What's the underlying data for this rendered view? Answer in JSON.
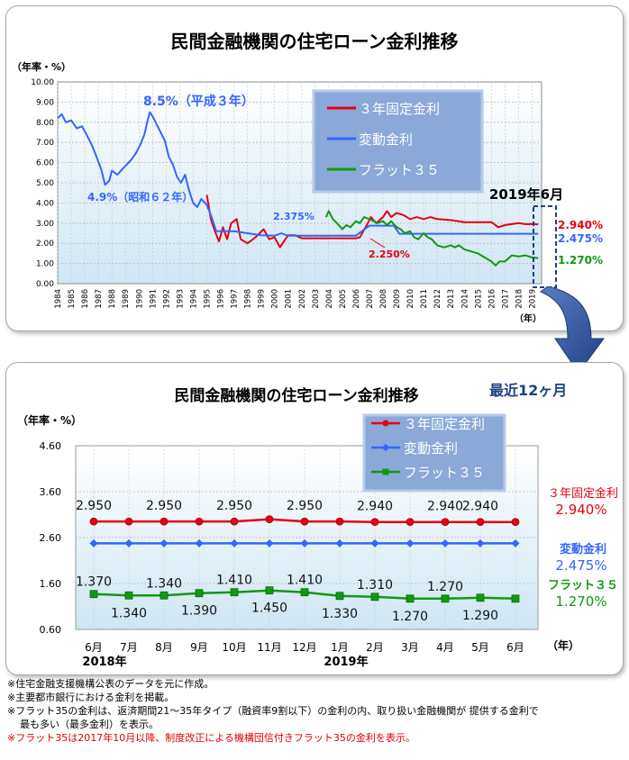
{
  "colors": {
    "fixed3": "#e60012",
    "variable": "#3366ff",
    "flat35": "#119911"
  },
  "chart_data": [
    {
      "type": "line",
      "title": "民間金融機関の住宅ローン金利推移",
      "ylabel": "（年率・%）",
      "xlabel": "（年）",
      "ylim": [
        0,
        10
      ],
      "xlim": [
        1984,
        2019.7
      ],
      "yticks": [
        "0.00",
        "1.00",
        "2.00",
        "3.00",
        "4.00",
        "5.00",
        "6.00",
        "7.00",
        "8.00",
        "9.00",
        "10.00"
      ],
      "xticks": [
        "1984",
        "1985",
        "1986",
        "1987",
        "1988",
        "1989",
        "1990",
        "1991",
        "1992",
        "1993",
        "1994",
        "1995",
        "1996",
        "1997",
        "1998",
        "1999",
        "2000",
        "2001",
        "2002",
        "2003",
        "2004",
        "2005",
        "2006",
        "2007",
        "2008",
        "2009",
        "2010",
        "2011",
        "2012",
        "2013",
        "2014",
        "2015",
        "2016",
        "2017",
        "2018",
        "2019"
      ],
      "grid": true,
      "legend": "top-right",
      "series": [
        {
          "name": "３年固定金利",
          "color_key": "fixed3",
          "points": [
            [
              1995.0,
              4.4
            ],
            [
              1995.3,
              3.2
            ],
            [
              1995.6,
              2.6
            ],
            [
              1995.9,
              2.1
            ],
            [
              1996.2,
              2.8
            ],
            [
              1996.5,
              2.2
            ],
            [
              1996.8,
              3.0
            ],
            [
              1997.2,
              3.2
            ],
            [
              1997.5,
              2.2
            ],
            [
              1998.0,
              2.0
            ],
            [
              1998.6,
              2.3
            ],
            [
              1999.2,
              2.7
            ],
            [
              1999.6,
              2.2
            ],
            [
              2000.0,
              2.3
            ],
            [
              2000.4,
              1.8
            ],
            [
              2000.8,
              2.2
            ],
            [
              2001.0,
              2.4
            ],
            [
              2001.5,
              2.4
            ],
            [
              2002.0,
              2.25
            ],
            [
              2003.0,
              2.25
            ],
            [
              2004.0,
              2.25
            ],
            [
              2005.0,
              2.25
            ],
            [
              2006.0,
              2.25
            ],
            [
              2006.3,
              2.3
            ],
            [
              2006.8,
              2.9
            ],
            [
              2007.1,
              3.3
            ],
            [
              2007.5,
              3.0
            ],
            [
              2008.0,
              3.3
            ],
            [
              2008.3,
              3.6
            ],
            [
              2008.6,
              3.3
            ],
            [
              2009.0,
              3.5
            ],
            [
              2009.5,
              3.4
            ],
            [
              2010.0,
              3.2
            ],
            [
              2010.5,
              3.3
            ],
            [
              2011.0,
              3.2
            ],
            [
              2011.5,
              3.3
            ],
            [
              2012.0,
              3.2
            ],
            [
              2013.0,
              3.15
            ],
            [
              2014.0,
              3.05
            ],
            [
              2015.0,
              3.05
            ],
            [
              2016.0,
              3.05
            ],
            [
              2016.5,
              2.8
            ],
            [
              2017.0,
              2.9
            ],
            [
              2017.5,
              2.95
            ],
            [
              2018.0,
              3.0
            ],
            [
              2018.5,
              2.95
            ],
            [
              2019.0,
              2.95
            ],
            [
              2019.45,
              2.94
            ]
          ]
        },
        {
          "name": "変動金利",
          "color_key": "variable",
          "points": [
            [
              1984.0,
              8.2
            ],
            [
              1984.3,
              8.4
            ],
            [
              1984.6,
              8.0
            ],
            [
              1985.0,
              8.1
            ],
            [
              1985.4,
              7.7
            ],
            [
              1985.8,
              7.8
            ],
            [
              1986.2,
              7.3
            ],
            [
              1986.5,
              6.9
            ],
            [
              1986.8,
              6.4
            ],
            [
              1987.2,
              5.7
            ],
            [
              1987.5,
              4.9
            ],
            [
              1987.8,
              5.1
            ],
            [
              1988.0,
              5.6
            ],
            [
              1988.4,
              5.4
            ],
            [
              1988.8,
              5.7
            ],
            [
              1989.1,
              5.9
            ],
            [
              1989.5,
              6.2
            ],
            [
              1989.8,
              6.5
            ],
            [
              1990.1,
              6.9
            ],
            [
              1990.4,
              7.4
            ],
            [
              1990.6,
              8.0
            ],
            [
              1990.8,
              8.5
            ],
            [
              1991.0,
              8.3
            ],
            [
              1991.3,
              7.9
            ],
            [
              1991.6,
              7.5
            ],
            [
              1991.9,
              7.1
            ],
            [
              1992.2,
              6.3
            ],
            [
              1992.5,
              5.9
            ],
            [
              1992.8,
              5.3
            ],
            [
              1993.1,
              5.0
            ],
            [
              1993.4,
              5.4
            ],
            [
              1993.7,
              4.6
            ],
            [
              1994.0,
              4.0
            ],
            [
              1994.3,
              3.8
            ],
            [
              1994.6,
              4.2
            ],
            [
              1995.0,
              3.9
            ],
            [
              1995.3,
              3.4
            ],
            [
              1995.7,
              2.6
            ],
            [
              1996.0,
              2.6
            ],
            [
              1997.0,
              2.6
            ],
            [
              1998.0,
              2.5
            ],
            [
              1999.0,
              2.4
            ],
            [
              2000.0,
              2.375
            ],
            [
              2000.5,
              2.5
            ],
            [
              2001.0,
              2.375
            ],
            [
              2002.0,
              2.375
            ],
            [
              2003.0,
              2.375
            ],
            [
              2004.0,
              2.375
            ],
            [
              2005.0,
              2.375
            ],
            [
              2006.0,
              2.375
            ],
            [
              2006.5,
              2.625
            ],
            [
              2007.0,
              2.875
            ],
            [
              2008.0,
              2.875
            ],
            [
              2008.8,
              2.875
            ],
            [
              2009.2,
              2.475
            ],
            [
              2010.0,
              2.475
            ],
            [
              2012.0,
              2.475
            ],
            [
              2014.0,
              2.475
            ],
            [
              2016.0,
              2.475
            ],
            [
              2018.0,
              2.475
            ],
            [
              2019.45,
              2.475
            ]
          ]
        },
        {
          "name": "フラット３５",
          "color_key": "flat35",
          "points": [
            [
              2003.8,
              3.3
            ],
            [
              2004.0,
              3.6
            ],
            [
              2004.3,
              3.2
            ],
            [
              2004.6,
              3.0
            ],
            [
              2005.0,
              2.7
            ],
            [
              2005.3,
              2.9
            ],
            [
              2005.6,
              2.8
            ],
            [
              2006.0,
              3.1
            ],
            [
              2006.3,
              3.0
            ],
            [
              2006.6,
              3.3
            ],
            [
              2007.0,
              3.2
            ],
            [
              2007.3,
              3.1
            ],
            [
              2007.6,
              3.0
            ],
            [
              2008.0,
              3.1
            ],
            [
              2008.3,
              2.9
            ],
            [
              2008.6,
              3.1
            ],
            [
              2009.0,
              2.8
            ],
            [
              2009.3,
              2.7
            ],
            [
              2009.6,
              2.5
            ],
            [
              2010.0,
              2.6
            ],
            [
              2010.3,
              2.3
            ],
            [
              2010.6,
              2.2
            ],
            [
              2011.0,
              2.5
            ],
            [
              2011.3,
              2.3
            ],
            [
              2011.6,
              2.2
            ],
            [
              2012.0,
              1.9
            ],
            [
              2012.5,
              1.8
            ],
            [
              2013.0,
              1.9
            ],
            [
              2013.3,
              1.8
            ],
            [
              2013.6,
              1.9
            ],
            [
              2014.0,
              1.7
            ],
            [
              2014.5,
              1.6
            ],
            [
              2015.0,
              1.5
            ],
            [
              2015.5,
              1.3
            ],
            [
              2016.0,
              1.1
            ],
            [
              2016.3,
              0.9
            ],
            [
              2016.6,
              1.1
            ],
            [
              2017.0,
              1.1
            ],
            [
              2017.5,
              1.4
            ],
            [
              2018.0,
              1.35
            ],
            [
              2018.5,
              1.4
            ],
            [
              2019.0,
              1.3
            ],
            [
              2019.45,
              1.27
            ]
          ]
        }
      ],
      "annotations": [
        {
          "text": "8.5%（平成３年）",
          "x": 1990.8,
          "y": 8.5
        },
        {
          "text": "4.9%（昭和６２年）",
          "x": 1987.5,
          "y": 4.9
        },
        {
          "text": "2.375%",
          "x": 2000.0,
          "y": 2.375
        },
        {
          "text": "2.250%",
          "x": 2006.5,
          "y": 2.25
        },
        {
          "text": "2019年6月",
          "x": 2019.4,
          "y": 4.3
        }
      ],
      "end_labels": [
        "2.940%",
        "2.475%",
        "1.270%"
      ]
    },
    {
      "type": "line",
      "title": "民間金融機関の住宅ローン金利推移",
      "subtitle": "最近12ヶ月",
      "ylabel": "（年率・%）",
      "xlabel": "（年）",
      "ylim": [
        0.6,
        4.6
      ],
      "yticks": [
        "0.60",
        "1.60",
        "2.60",
        "3.60",
        "4.60"
      ],
      "categories": [
        "6月",
        "7月",
        "8月",
        "9月",
        "10月",
        "11月",
        "12月",
        "1月",
        "2月",
        "3月",
        "4月",
        "5月",
        "6月"
      ],
      "year_labels": [
        {
          "text": "2018年",
          "index": 0
        },
        {
          "text": "2019年",
          "index": 7
        }
      ],
      "grid": true,
      "legend": "top-right",
      "series": [
        {
          "name": "３年固定金利",
          "color_key": "fixed3",
          "values": [
            2.95,
            2.95,
            2.95,
            2.95,
            2.95,
            3.0,
            2.95,
            2.95,
            2.94,
            2.94,
            2.94,
            2.94,
            2.94
          ],
          "data_labels": [
            "2.950",
            "",
            "2.950",
            "",
            "2.950",
            "",
            "2.950",
            "",
            "2.940",
            "",
            "2.940",
            "2.940",
            ""
          ],
          "end_label": [
            "３年固定金利",
            "2.940%"
          ]
        },
        {
          "name": "変動金利",
          "color_key": "variable",
          "values": [
            2.475,
            2.475,
            2.475,
            2.475,
            2.475,
            2.475,
            2.475,
            2.475,
            2.475,
            2.475,
            2.475,
            2.475,
            2.475
          ],
          "data_labels": [],
          "end_label": [
            "変動金利",
            "2.475%"
          ]
        },
        {
          "name": "フラット３５",
          "color_key": "flat35",
          "values": [
            1.37,
            1.34,
            1.34,
            1.39,
            1.41,
            1.45,
            1.41,
            1.33,
            1.31,
            1.27,
            1.27,
            1.29,
            1.27
          ],
          "data_labels": [
            "1.370",
            "1.340",
            "1.340",
            "1.390",
            "1.410",
            "1.450",
            "1.410",
            "1.330",
            "1.310",
            "1.270",
            "1.270",
            "1.290",
            ""
          ],
          "end_label": [
            "フラット３５",
            "1.270%"
          ]
        }
      ]
    }
  ],
  "notes": [
    "※住宅金融支援機構公表のデータを元に作成。",
    "※主要都市銀行における金利を掲載。",
    "※フラット35の金利は、返済期間21～35年タイプ（融資率9割以下）の金利の内、取り扱い金融機関が 提供する金利で",
    "最も多い（最多金利）を表示。",
    "※フラット35は2017年10月以降、制度改正による機構団信付きフラット35の金利を表示。"
  ]
}
